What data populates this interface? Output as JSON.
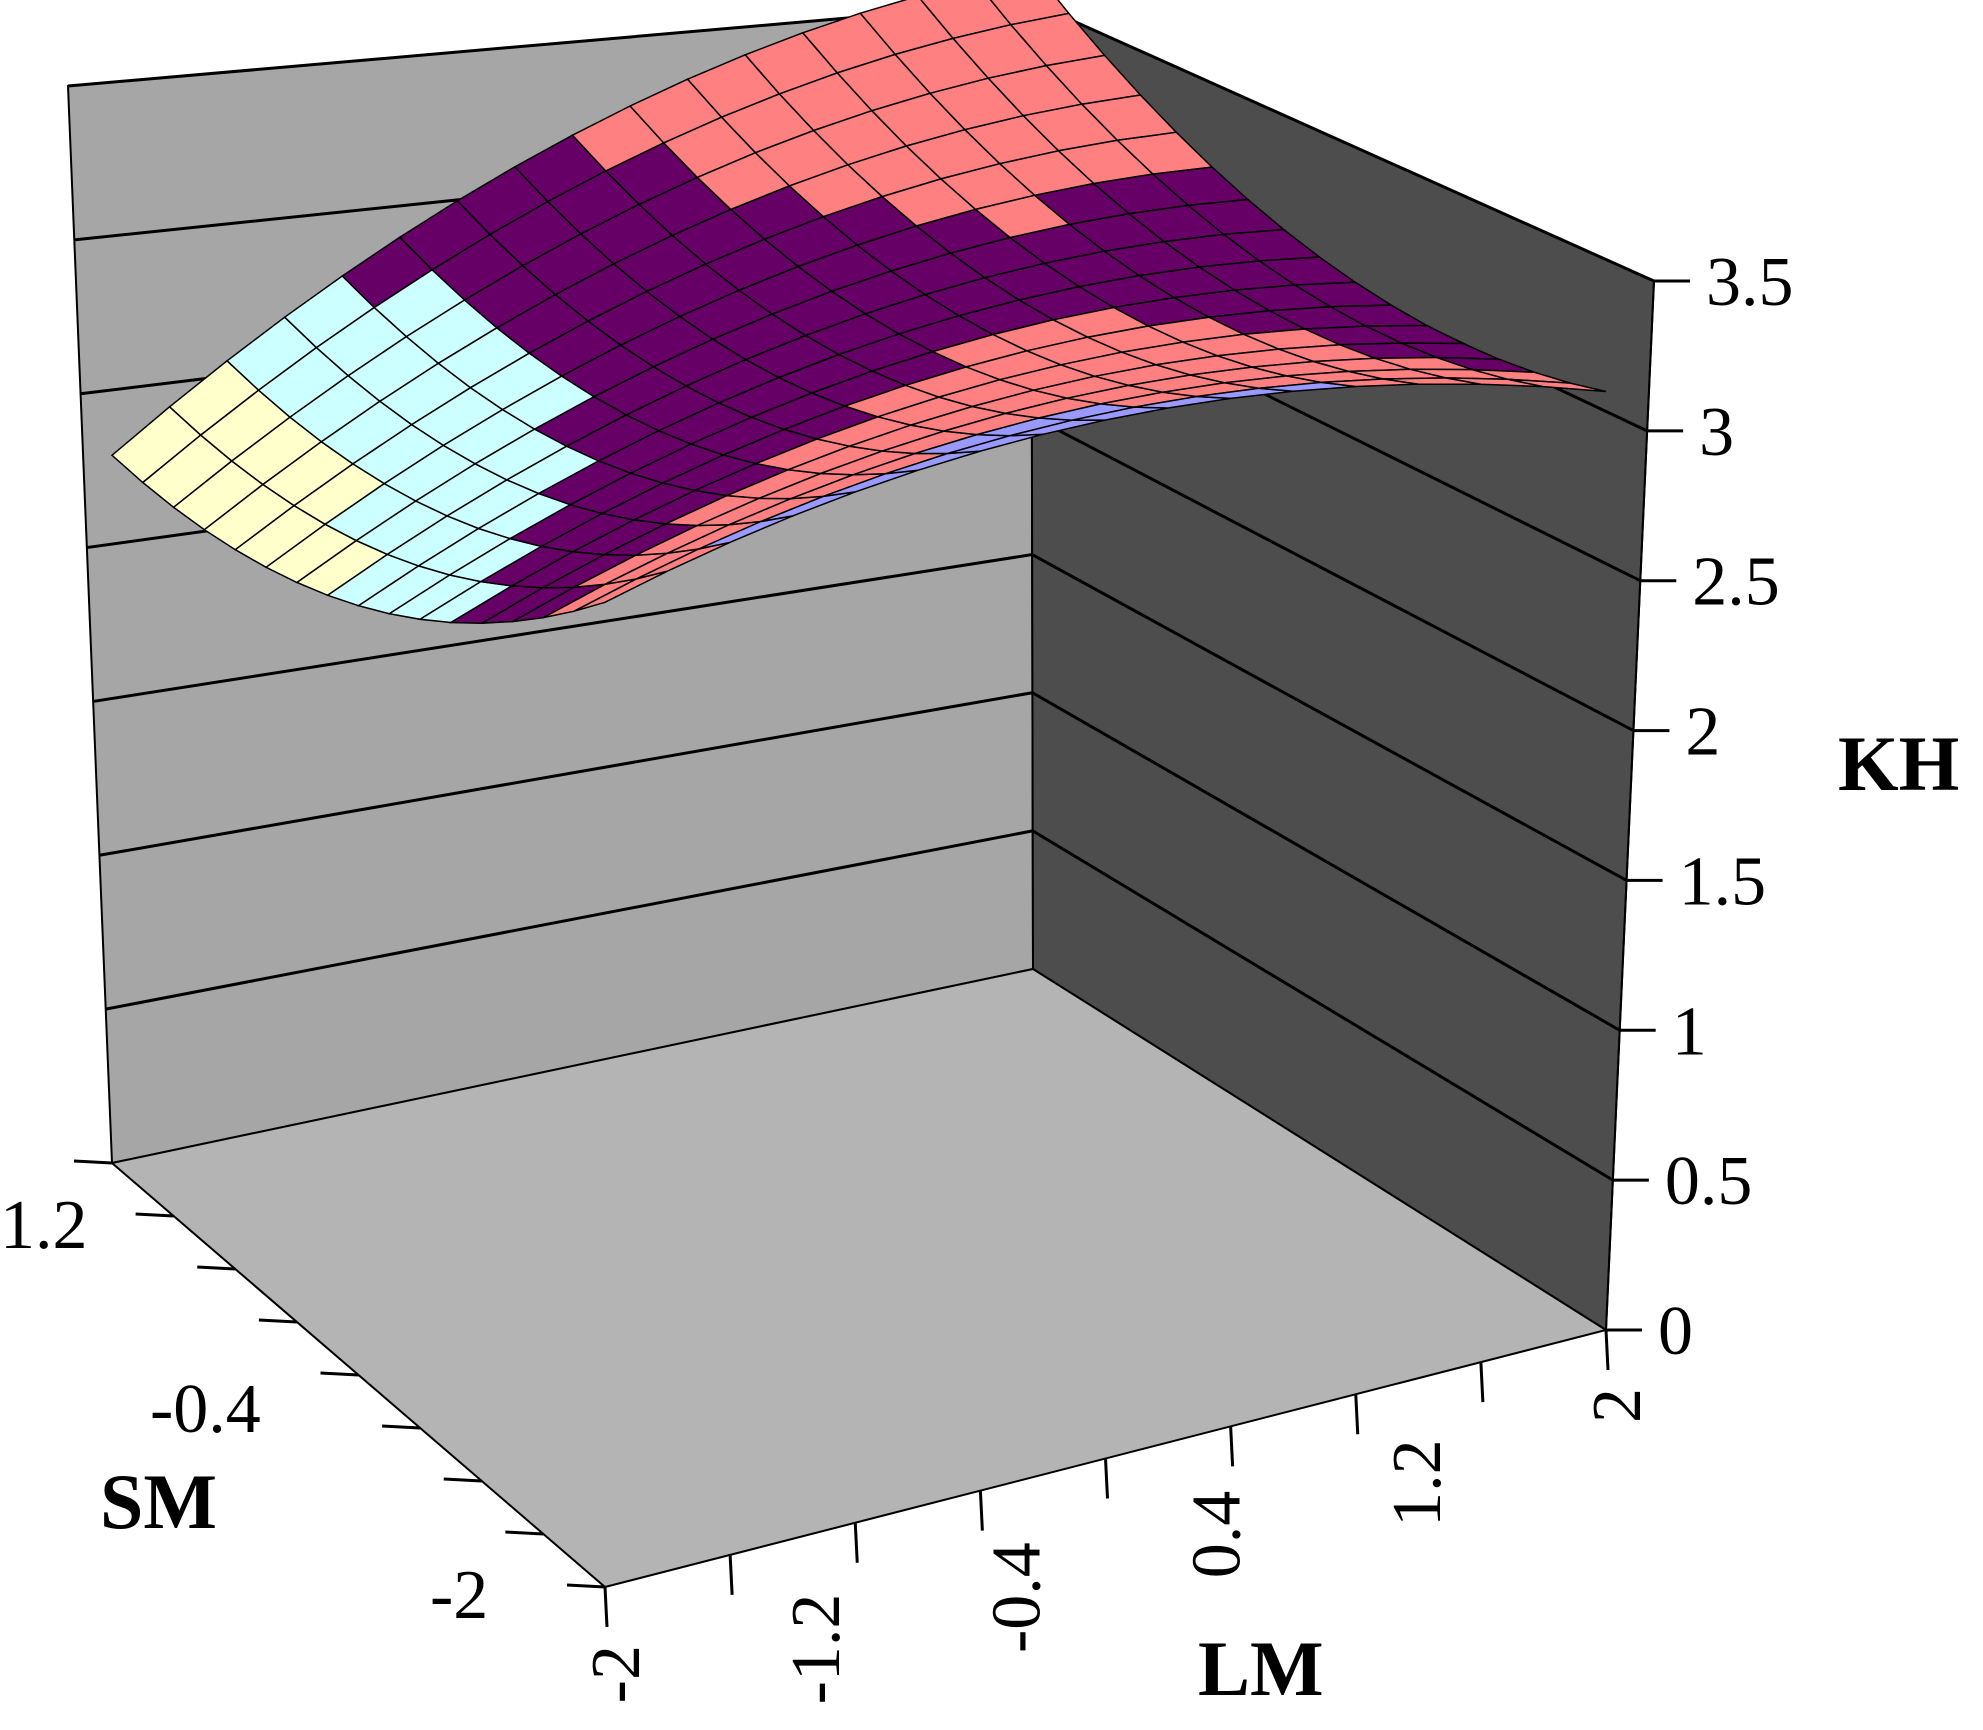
{
  "chart_data": {
    "type": "surface3d",
    "xlabel": "LM",
    "ylabel": "SM",
    "zlabel": "KH",
    "x_ticks": [
      "-2",
      "-1.2",
      "-0.4",
      "0.4",
      "1.2",
      "2"
    ],
    "y_ticks": [
      "-2",
      "-0.4",
      "1.2"
    ],
    "z_ticks": [
      "0",
      "0.5",
      "1",
      "1.5",
      "2",
      "2.5",
      "3",
      "3.5"
    ],
    "xlim": [
      -2,
      2
    ],
    "ylim": [
      -2,
      2
    ],
    "zlim": [
      0,
      3.5
    ],
    "grid": "horizontal lines on back walls",
    "colors": {
      "wall_left": "#a6a6a6",
      "wall_right": "#4d4d4d",
      "floor": "#b4b4b4",
      "band_2.25_2.5": "#ffffcc",
      "band_2.5_2.75": "#ccffff",
      "band_2.75_3": "#660066",
      "band_3_3.25": "#ff8080",
      "band_3.25_3.5": "#9999ff"
    },
    "surface": {
      "x": [
        -2,
        -1.5,
        -1,
        -0.5,
        0,
        0.5,
        1,
        1.5,
        2
      ],
      "y": [
        -2,
        -1.5,
        -1,
        -0.5,
        0,
        0.5,
        1,
        1.5,
        2
      ],
      "z_corners": {
        "lm_-2_sm_-2": 3.2,
        "lm_2_sm_-2": 3.05,
        "lm_-2_sm_2": 2.3,
        "lm_2_sm_2": 3.25
      },
      "z_centre": 2.9
    }
  }
}
